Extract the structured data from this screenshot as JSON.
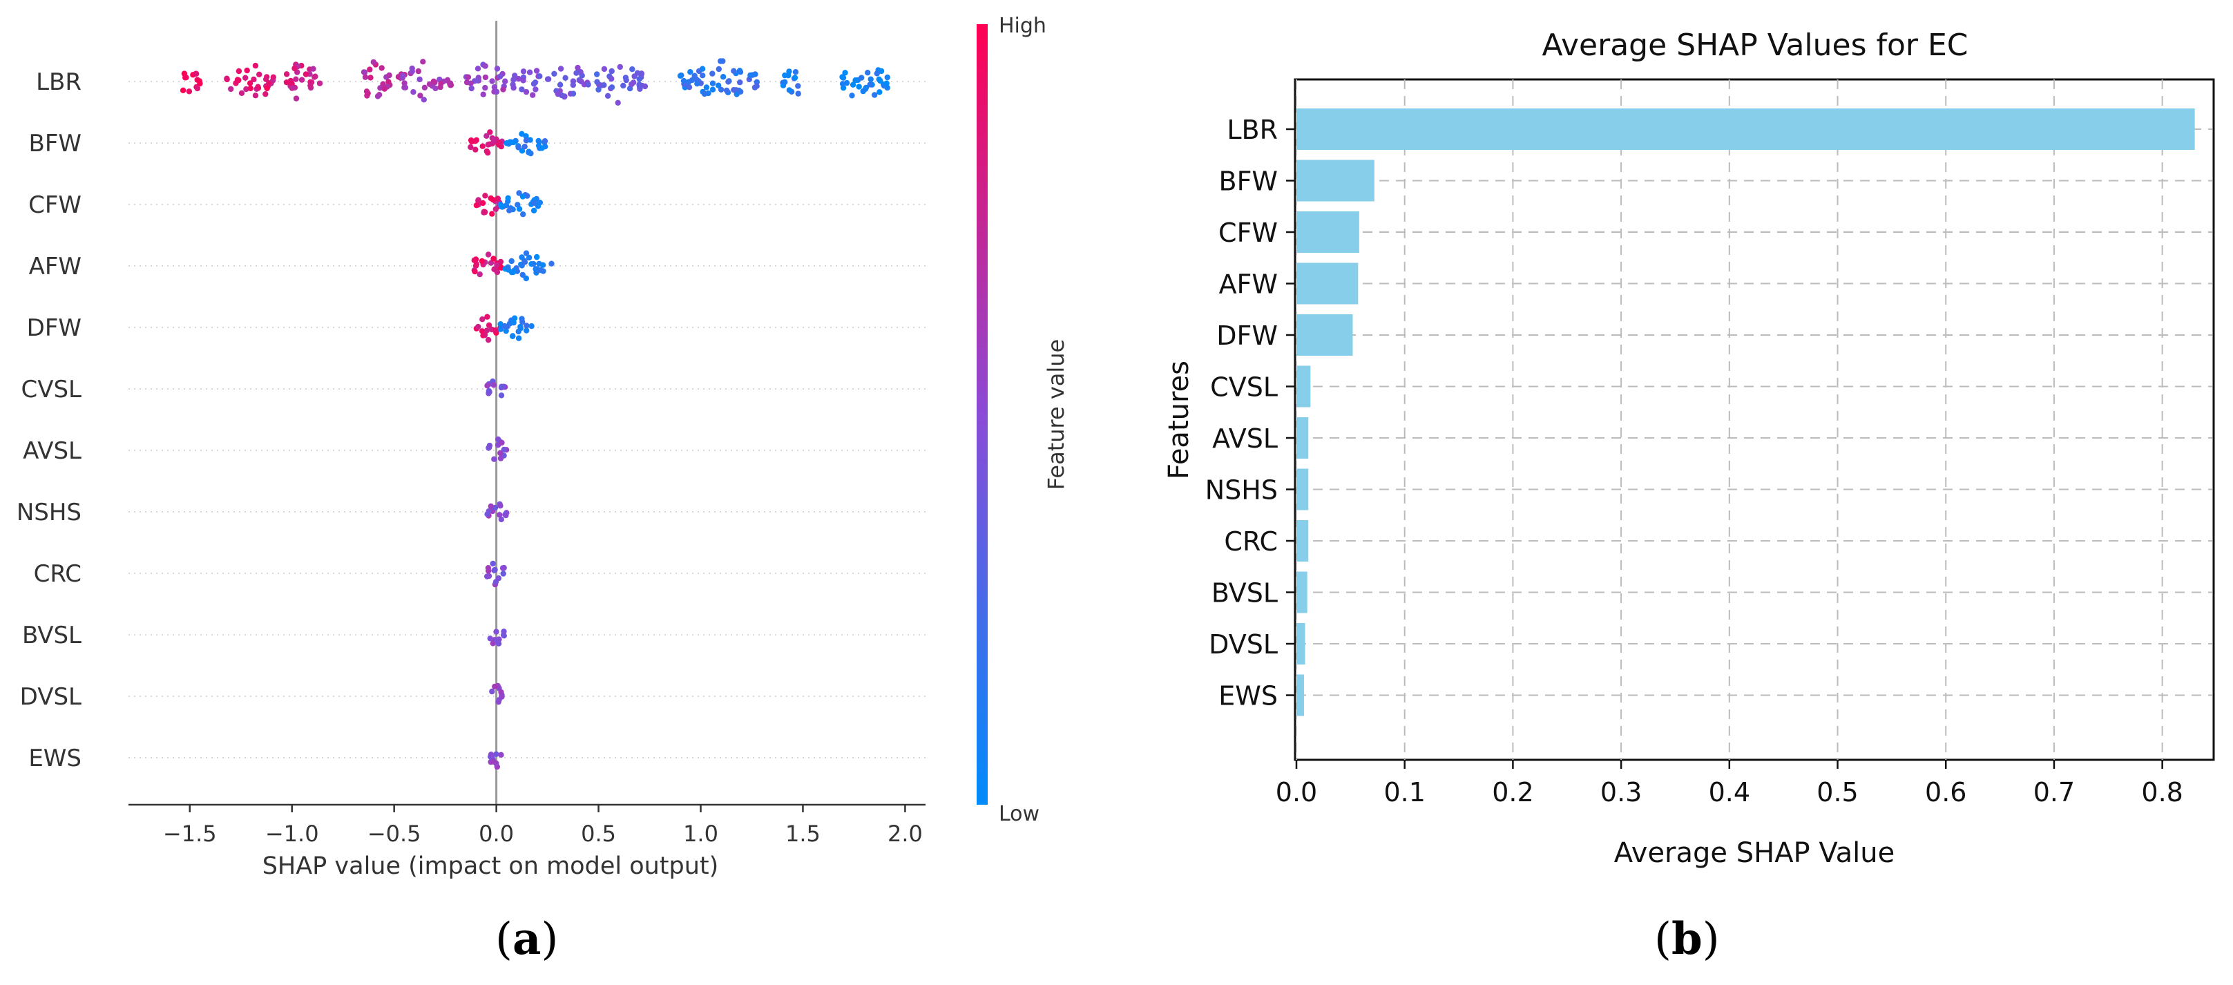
{
  "figure": {
    "panel_a_label": "a",
    "panel_b_label": "b",
    "paren_open": "(",
    "paren_close": ")"
  },
  "chart_data": [
    {
      "type": "scatter",
      "subtype": "shap-beeswarm",
      "title": "",
      "xlabel": "SHAP value (impact on model output)",
      "ylabel": "",
      "xlim": [
        -1.8,
        2.1
      ],
      "xticks": [
        -1.5,
        -1.0,
        -0.5,
        0.0,
        0.5,
        1.0,
        1.5,
        2.0
      ],
      "xtick_labels": [
        "−1.5",
        "−1.0",
        "−0.5",
        "0.0",
        "0.5",
        "1.0",
        "1.5",
        "2.0"
      ],
      "categories": [
        "LBR",
        "BFW",
        "CFW",
        "AFW",
        "DFW",
        "CVSL",
        "AVSL",
        "NSHS",
        "CRC",
        "BVSL",
        "DVSL",
        "EWS"
      ],
      "grid": false,
      "colorbar": {
        "label": "Feature value",
        "high_label": "High",
        "low_label": "Low",
        "high_color": "#ff0052",
        "low_color": "#008bfb"
      },
      "series": [
        {
          "name": "LBR",
          "clusters": [
            [
              -1.5,
              0.05,
              0.95
            ],
            [
              -1.2,
              0.12,
              0.85
            ],
            [
              -0.95,
              0.1,
              0.78
            ],
            [
              -0.6,
              0.08,
              0.7
            ],
            [
              -0.35,
              0.13,
              0.62
            ],
            [
              -0.05,
              0.1,
              0.55
            ],
            [
              0.15,
              0.07,
              0.48
            ],
            [
              0.35,
              0.1,
              0.42
            ],
            [
              0.6,
              0.13,
              0.35
            ],
            [
              1.1,
              0.2,
              0.18
            ],
            [
              1.45,
              0.05,
              0.12
            ],
            [
              1.8,
              0.12,
              0.05
            ]
          ]
        },
        {
          "name": "BFW",
          "clusters": [
            [
              -0.05,
              0.09,
              0.85
            ],
            [
              0.15,
              0.1,
              0.1
            ]
          ]
        },
        {
          "name": "CFW",
          "clusters": [
            [
              -0.03,
              0.07,
              0.85
            ],
            [
              0.12,
              0.1,
              0.1
            ]
          ]
        },
        {
          "name": "AFW",
          "clusters": [
            [
              -0.05,
              0.08,
              0.85
            ],
            [
              0.15,
              0.12,
              0.1
            ]
          ]
        },
        {
          "name": "DFW",
          "clusters": [
            [
              -0.04,
              0.06,
              0.85
            ],
            [
              0.1,
              0.08,
              0.1
            ]
          ]
        },
        {
          "name": "CVSL",
          "clusters": [
            [
              0.0,
              0.05,
              0.5
            ]
          ]
        },
        {
          "name": "AVSL",
          "clusters": [
            [
              0.0,
              0.05,
              0.5
            ]
          ]
        },
        {
          "name": "NSHS",
          "clusters": [
            [
              0.0,
              0.05,
              0.5
            ]
          ]
        },
        {
          "name": "CRC",
          "clusters": [
            [
              0.0,
              0.05,
              0.5
            ]
          ]
        },
        {
          "name": "BVSL",
          "clusters": [
            [
              0.0,
              0.04,
              0.5
            ]
          ]
        },
        {
          "name": "DVSL",
          "clusters": [
            [
              0.0,
              0.03,
              0.5
            ]
          ]
        },
        {
          "name": "EWS",
          "clusters": [
            [
              0.0,
              0.03,
              0.5
            ]
          ]
        }
      ]
    },
    {
      "type": "bar",
      "orientation": "horizontal",
      "title": "Average SHAP Values for EC",
      "xlabel": "Average SHAP Value",
      "ylabel": "Features",
      "xlim": [
        0,
        0.85
      ],
      "xticks": [
        0.0,
        0.1,
        0.2,
        0.3,
        0.4,
        0.5,
        0.6,
        0.7,
        0.8
      ],
      "xtick_labels": [
        "0.0",
        "0.1",
        "0.2",
        "0.3",
        "0.4",
        "0.5",
        "0.6",
        "0.7",
        "0.8"
      ],
      "categories": [
        "LBR",
        "BFW",
        "CFW",
        "AFW",
        "DFW",
        "CVSL",
        "AVSL",
        "NSHS",
        "CRC",
        "BVSL",
        "DVSL",
        "EWS"
      ],
      "values": [
        0.83,
        0.072,
        0.058,
        0.057,
        0.052,
        0.013,
        0.011,
        0.011,
        0.011,
        0.01,
        0.008,
        0.007
      ],
      "bar_color": "#87ceeb",
      "grid": true
    }
  ]
}
